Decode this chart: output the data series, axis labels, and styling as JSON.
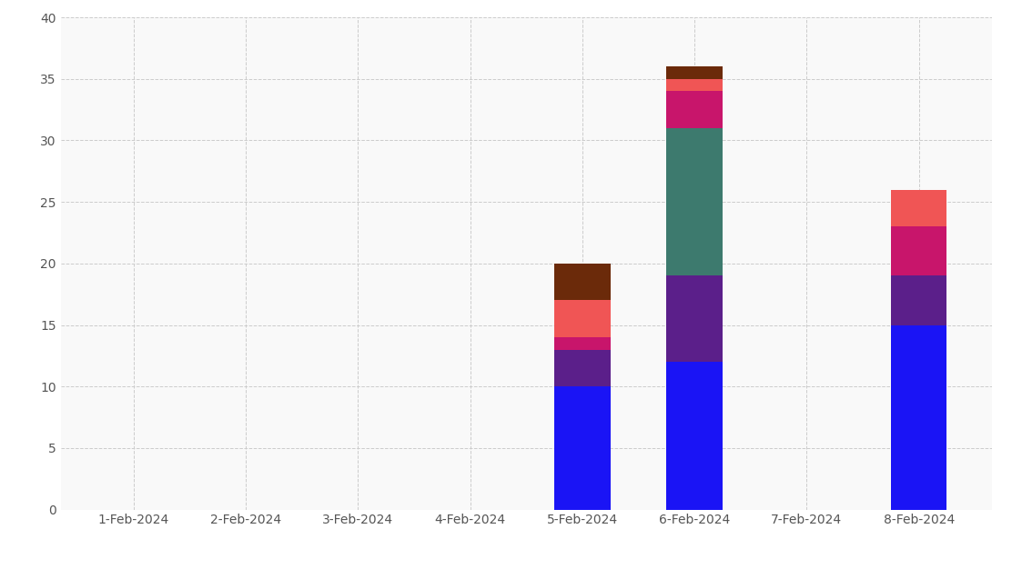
{
  "dates": [
    "1-Feb-2024",
    "2-Feb-2024",
    "3-Feb-2024",
    "4-Feb-2024",
    "5-Feb-2024",
    "6-Feb-2024",
    "7-Feb-2024",
    "8-Feb-2024"
  ],
  "segments": {
    "blue": [
      0,
      0,
      0,
      0,
      10,
      12,
      0,
      15
    ],
    "purple": [
      0,
      0,
      0,
      0,
      3,
      7,
      0,
      4
    ],
    "teal": [
      0,
      0,
      0,
      0,
      0,
      12,
      0,
      0
    ],
    "magenta": [
      0,
      0,
      0,
      0,
      1,
      3,
      0,
      4
    ],
    "salmon": [
      0,
      0,
      0,
      0,
      3,
      1,
      0,
      3
    ],
    "brown": [
      0,
      0,
      0,
      0,
      3,
      1,
      0,
      0
    ]
  },
  "colors": {
    "blue": "#1a14f5",
    "purple": "#5b1f8a",
    "teal": "#3d7a6e",
    "magenta": "#c8156b",
    "salmon": "#f05555",
    "brown": "#6b2a0a"
  },
  "ylim": [
    0,
    40
  ],
  "yticks": [
    0,
    5,
    10,
    15,
    20,
    25,
    30,
    35,
    40
  ],
  "bar_width": 0.5,
  "background_color": "#f9f9f9",
  "grid_color": "#cccccc"
}
